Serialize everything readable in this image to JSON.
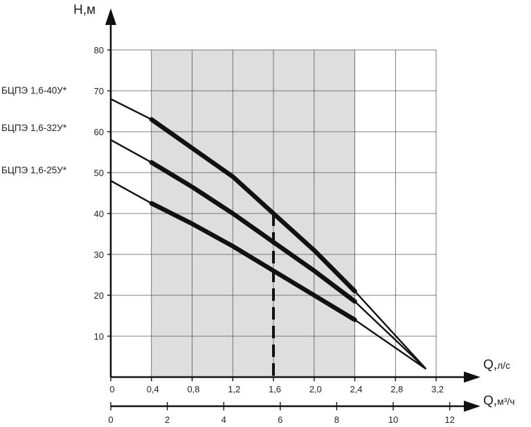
{
  "chart_data": {
    "type": "line",
    "title": "",
    "y_axis": {
      "label_main": "Н,",
      "label_unit": "м",
      "ticks": [
        10,
        20,
        30,
        40,
        50,
        60,
        70,
        80
      ],
      "ylim": [
        0,
        80
      ]
    },
    "x_axis_primary": {
      "label_main": "Q,",
      "label_unit": "л/с",
      "ticks": [
        0,
        0.4,
        0.8,
        1.2,
        1.6,
        2.0,
        2.4,
        2.8,
        3.2
      ],
      "tick_labels": [
        "0",
        "0,4",
        "0,8",
        "1,2",
        "1,6",
        "2,0",
        "2,4",
        "2,8",
        "3,2"
      ],
      "xlim": [
        0,
        3.2
      ]
    },
    "x_axis_secondary": {
      "label_main": "Q,",
      "label_unit": "м³/ч",
      "ticks": [
        0,
        2,
        4,
        6,
        8,
        10,
        12
      ],
      "tick_labels": [
        "0",
        "2",
        "4",
        "6",
        "8",
        "10",
        "12"
      ]
    },
    "working_range": {
      "x_from": 0.4,
      "x_to": 2.4,
      "fill_color": "#dedede"
    },
    "nominal_flow": {
      "x": 1.6,
      "style": "dashed"
    },
    "grid": true,
    "series": [
      {
        "name": "БЦПЭ 1,6-40У*",
        "x": [
          0,
          0.4,
          0.8,
          1.2,
          1.6,
          2.0,
          2.4,
          3.1
        ],
        "y": [
          68,
          63,
          56,
          49,
          40,
          31,
          21,
          2
        ]
      },
      {
        "name": "БЦПЭ 1,6-32У*",
        "x": [
          0,
          0.4,
          0.8,
          1.2,
          1.6,
          2.0,
          2.4,
          3.1
        ],
        "y": [
          58,
          52.5,
          46.5,
          40,
          33,
          26,
          18.5,
          2
        ]
      },
      {
        "name": "БЦПЭ 1,6-25У*",
        "x": [
          0,
          0.4,
          0.8,
          1.2,
          1.6,
          2.0,
          2.4,
          3.1
        ],
        "y": [
          48,
          42.5,
          37.5,
          32,
          26,
          20,
          14,
          2
        ]
      }
    ]
  }
}
